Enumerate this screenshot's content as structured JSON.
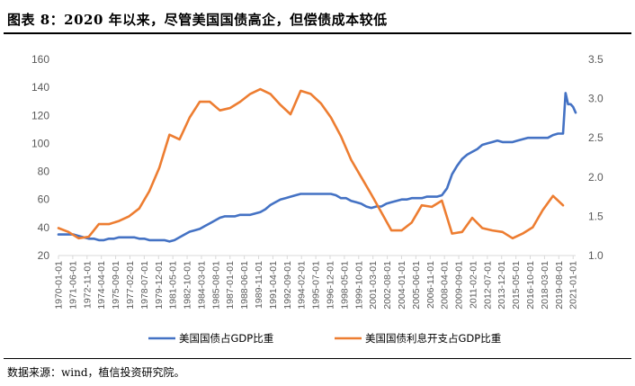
{
  "figure": {
    "title": "图表 8：2020 年以来，尽管美国国债高企，但偿债成本较低",
    "source": "数据来源：wind，植信投资研究院。"
  },
  "chart_data": {
    "type": "line",
    "title": "图表 8：2020 年以来，尽管美国国债高企，但偿债成本较低",
    "xlabel": "",
    "ylabel_left": "",
    "ylabel_right": "",
    "ylim_left": [
      20,
      160
    ],
    "yticks_left": [
      "20",
      "40",
      "60",
      "80",
      "100",
      "120",
      "140",
      "160"
    ],
    "ylim_right": [
      1.0,
      3.5
    ],
    "yticks_right": [
      "1.0",
      "1.5",
      "2.0",
      "2.5",
      "3.0",
      "3.5"
    ],
    "x_range": [
      1970.0,
      2021.25
    ],
    "x_ticks": [
      "1970-01-01",
      "1971-06-01",
      "1972-11-01",
      "1974-04-01",
      "1975-09-01",
      "1977-02-01",
      "1978-07-01",
      "1979-12-01",
      "1981-05-01",
      "1982-10-01",
      "1984-03-01",
      "1985-08-01",
      "1987-01-01",
      "1988-06-01",
      "1989-11-01",
      "1991-04-01",
      "1992-09-01",
      "1994-02-01",
      "1995-07-01",
      "1996-12-01",
      "1998-05-01",
      "1999-10-01",
      "2001-03-01",
      "2002-08-01",
      "2004-01-01",
      "2005-06-01",
      "2006-11-01",
      "2008-04-01",
      "2009-09-01",
      "2011-02-01",
      "2012-07-01",
      "2013-12-01",
      "2015-05-01",
      "2016-10-01",
      "2018-03-01",
      "2019-08-01",
      "2021-01-01"
    ],
    "grid": false,
    "legend_position": "bottom",
    "series": [
      {
        "name": "美国国债占GDP比重",
        "axis": "left",
        "color": "#4472C4",
        "x": [
          1970.0,
          1970.5,
          1971.0,
          1971.5,
          1972.0,
          1972.5,
          1973.0,
          1973.5,
          1974.0,
          1974.5,
          1975.0,
          1975.5,
          1976.0,
          1976.5,
          1977.0,
          1977.5,
          1978.0,
          1978.5,
          1979.0,
          1979.5,
          1980.0,
          1980.5,
          1981.0,
          1981.5,
          1982.0,
          1982.5,
          1983.0,
          1983.5,
          1984.0,
          1984.5,
          1985.0,
          1985.5,
          1986.0,
          1986.5,
          1987.0,
          1987.5,
          1988.0,
          1988.5,
          1989.0,
          1989.5,
          1990.0,
          1990.5,
          1991.0,
          1991.5,
          1992.0,
          1992.5,
          1993.0,
          1993.5,
          1994.0,
          1994.5,
          1995.0,
          1995.5,
          1996.0,
          1996.5,
          1997.0,
          1997.5,
          1998.0,
          1998.5,
          1999.0,
          1999.5,
          2000.0,
          2000.5,
          2001.0,
          2001.5,
          2002.0,
          2002.5,
          2003.0,
          2003.5,
          2004.0,
          2004.5,
          2005.0,
          2005.5,
          2006.0,
          2006.5,
          2007.0,
          2007.5,
          2008.0,
          2008.5,
          2009.0,
          2009.5,
          2010.0,
          2010.5,
          2011.0,
          2011.5,
          2012.0,
          2012.5,
          2013.0,
          2013.5,
          2014.0,
          2014.5,
          2015.0,
          2015.5,
          2016.0,
          2016.5,
          2017.0,
          2017.5,
          2018.0,
          2018.5,
          2019.0,
          2019.5,
          2020.0,
          2020.25,
          2020.5,
          2020.75,
          2021.0,
          2021.25
        ],
        "values": [
          35,
          35,
          35,
          35,
          34,
          33,
          32,
          32,
          31,
          31,
          32,
          32,
          33,
          33,
          33,
          33,
          32,
          32,
          31,
          31,
          31,
          31,
          30,
          31,
          33,
          35,
          37,
          38,
          39,
          41,
          43,
          45,
          47,
          48,
          48,
          48,
          49,
          49,
          49,
          50,
          51,
          53,
          56,
          58,
          60,
          61,
          62,
          63,
          64,
          64,
          64,
          64,
          64,
          64,
          64,
          63,
          61,
          61,
          59,
          58,
          57,
          55,
          54,
          55,
          55,
          57,
          58,
          59,
          60,
          60,
          61,
          61,
          61,
          62,
          62,
          62,
          63,
          68,
          78,
          84,
          89,
          92,
          94,
          96,
          99,
          100,
          101,
          102,
          101,
          101,
          101,
          102,
          103,
          104,
          104,
          104,
          104,
          104,
          106,
          107,
          107,
          136,
          128,
          128,
          126,
          122
        ]
      },
      {
        "name": "美国国债利息开支占GDP比重",
        "axis": "right",
        "color": "#ED7D31",
        "x": [
          1970.0,
          1971.0,
          1972.0,
          1973.0,
          1974.0,
          1975.0,
          1976.0,
          1977.0,
          1978.0,
          1979.0,
          1980.0,
          1981.0,
          1982.0,
          1983.0,
          1984.0,
          1985.0,
          1986.0,
          1987.0,
          1988.0,
          1989.0,
          1990.0,
          1991.0,
          1992.0,
          1993.0,
          1994.0,
          1995.0,
          1996.0,
          1997.0,
          1998.0,
          1999.0,
          2000.0,
          2001.0,
          2002.0,
          2003.0,
          2004.0,
          2005.0,
          2006.0,
          2007.0,
          2008.0,
          2009.0,
          2010.0,
          2011.0,
          2012.0,
          2013.0,
          2014.0,
          2015.0,
          2016.0,
          2017.0,
          2018.0,
          2019.0,
          2020.0
        ],
        "values": [
          1.35,
          1.3,
          1.22,
          1.24,
          1.4,
          1.4,
          1.44,
          1.5,
          1.6,
          1.82,
          2.12,
          2.54,
          2.48,
          2.76,
          2.96,
          2.96,
          2.85,
          2.88,
          2.96,
          3.06,
          3.12,
          3.06,
          2.92,
          2.8,
          3.1,
          3.06,
          2.94,
          2.76,
          2.52,
          2.22,
          2.0,
          1.78,
          1.55,
          1.32,
          1.32,
          1.42,
          1.64,
          1.62,
          1.7,
          1.28,
          1.3,
          1.48,
          1.35,
          1.32,
          1.3,
          1.22,
          1.28,
          1.36,
          1.58,
          1.76,
          1.64
        ]
      }
    ]
  }
}
